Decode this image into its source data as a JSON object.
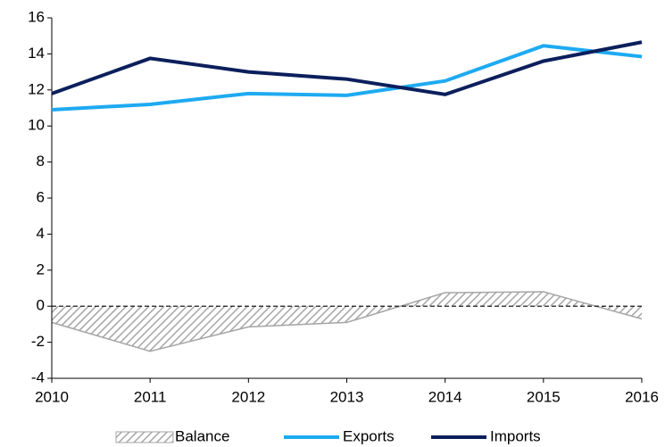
{
  "chart_data": {
    "type": "line",
    "x": [
      2010,
      2011,
      2012,
      2013,
      2014,
      2015,
      2016
    ],
    "xlim": [
      2010,
      2016
    ],
    "xticks": [
      2010,
      2011,
      2012,
      2013,
      2014,
      2015,
      2016
    ],
    "ylim": [
      -4,
      16
    ],
    "yticks": [
      -4,
      -2,
      0,
      2,
      4,
      6,
      8,
      10,
      12,
      14,
      16
    ],
    "grid": false,
    "legend": "bottom",
    "series": [
      {
        "name": "Balance",
        "kind": "area",
        "color": "#a6a6a6",
        "values": [
          -0.9,
          -2.5,
          -1.15,
          -0.9,
          0.75,
          0.8,
          -0.7
        ]
      },
      {
        "name": "Exports",
        "color": "#1eaaf1",
        "values": [
          10.9,
          11.2,
          11.8,
          11.7,
          12.5,
          14.45,
          13.85
        ]
      },
      {
        "name": "Imports",
        "color": "#0b1f5c",
        "values": [
          11.8,
          13.75,
          13.0,
          12.6,
          11.75,
          13.6,
          14.65
        ]
      }
    ]
  }
}
